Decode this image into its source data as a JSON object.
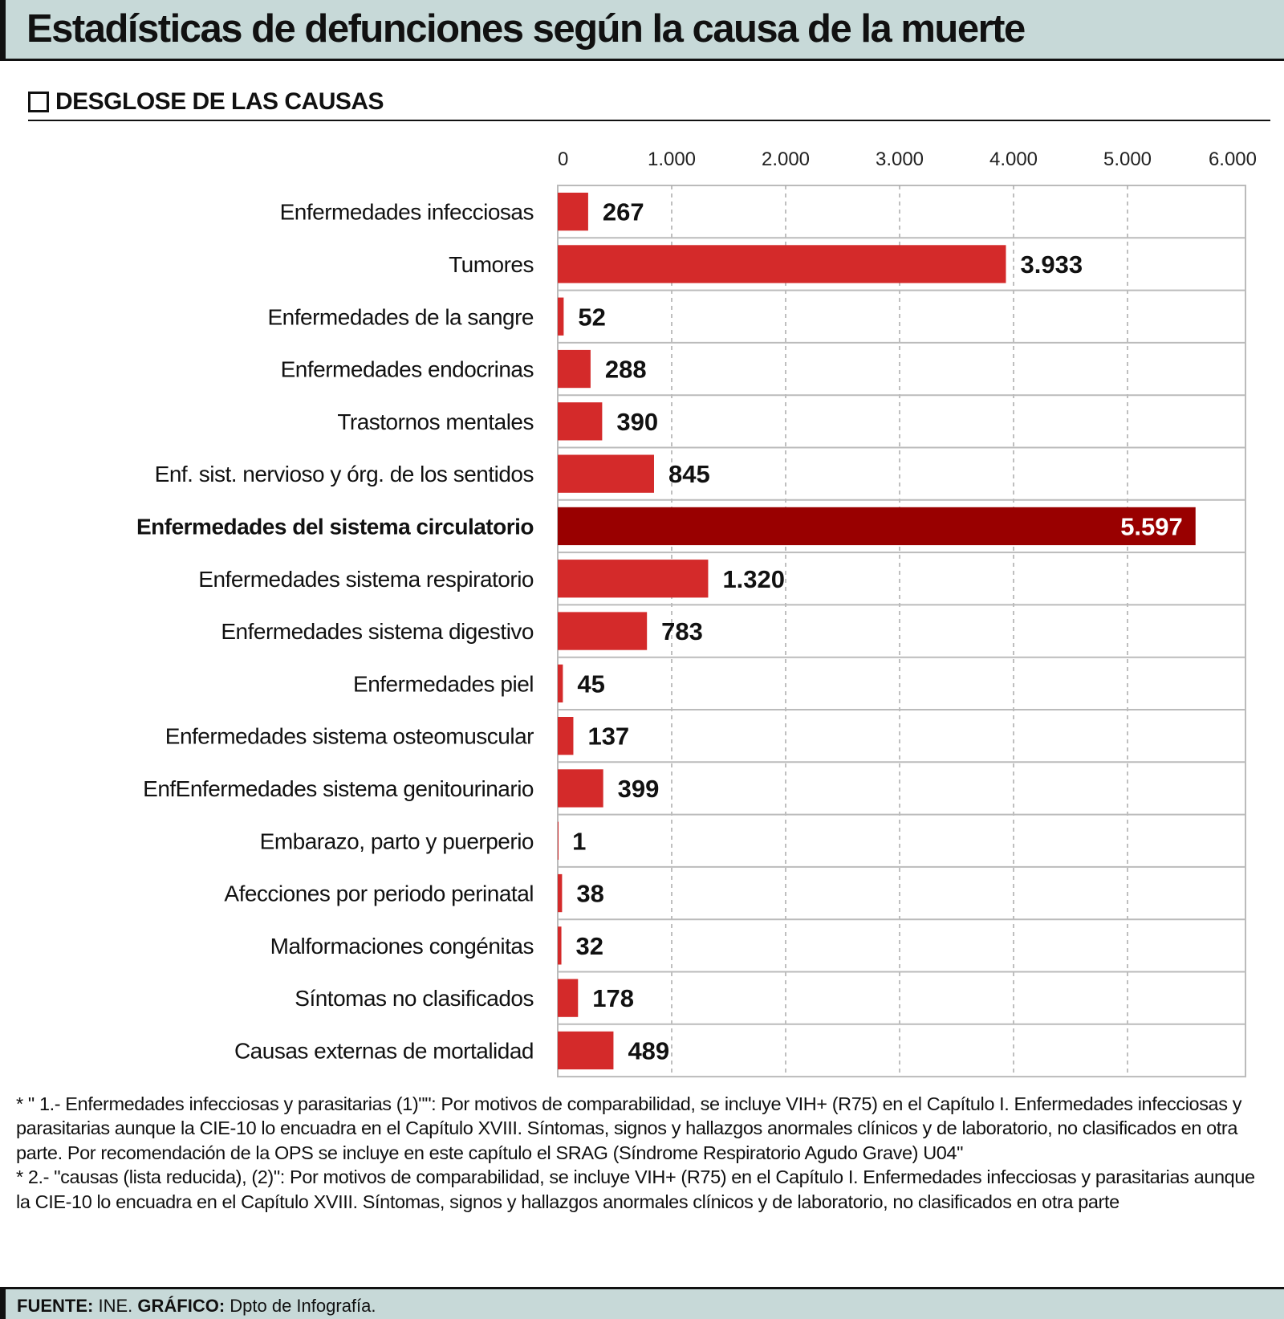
{
  "title": "Estadísticas de defunciones según la causa de la muerte",
  "subtitle": "DESGLOSE DE LAS CAUSAS",
  "chart_data": {
    "type": "bar",
    "orientation": "horizontal",
    "xlim": [
      0,
      6000
    ],
    "ticks": [
      0,
      1000,
      2000,
      3000,
      4000,
      5000,
      6000
    ],
    "tick_labels": [
      "0",
      "1.000",
      "2.000",
      "3.000",
      "4.000",
      "5.000",
      "6.000"
    ],
    "grid": true,
    "categories": [
      "Enfermedades infecciosas",
      "Tumores",
      "Enfermedades de la sangre",
      "Enfermedades endocrinas",
      "Trastornos mentales",
      "Enf. sist. nervioso y órg. de los sentidos",
      "Enfermedades del sistema circulatorio",
      "Enfermedades sistema respiratorio",
      "Enfermedades sistema digestivo",
      "Enfermedades piel",
      "Enfermedades sistema osteomuscular",
      "EnfEnfermedades sistema genitourinario",
      "Embarazo, parto y puerperio",
      "Afecciones por periodo perinatal",
      "Malformaciones congénitas",
      "Síntomas no clasificados",
      "Causas externas de mortalidad"
    ],
    "values": [
      267,
      3933,
      52,
      288,
      390,
      845,
      5597,
      1320,
      783,
      45,
      137,
      399,
      1,
      38,
      32,
      178,
      489
    ],
    "value_labels": [
      "267",
      "3.933",
      "52",
      "288",
      "390",
      "845",
      "5.597",
      "1.320",
      "783",
      "45",
      "137",
      "399",
      "1",
      "38",
      "32",
      "178",
      "489"
    ],
    "highlight_index": 6,
    "colors": {
      "bar": "#d42a2a",
      "highlight": "#990000",
      "grid": "#aaaaaa"
    }
  },
  "footnotes": [
    "* \" 1.- Enfermedades infecciosas y parasitarias (1)\"\": Por motivos de comparabilidad, se incluye VIH+ (R75) en el Capítulo I. Enfermedades infecciosas y parasitarias aunque la CIE-10 lo encuadra en el Capítulo XVIII. Síntomas, signos y hallazgos anormales clínicos y de laboratorio, no clasificados en otra parte. Por recomendación de la OPS se incluye en este capítulo el SRAG (Síndrome Respiratorio Agudo Grave) U04\"",
    "* 2.- \"causas (lista reducida), (2)\": Por motivos de comparabilidad, se incluye VIH+ (R75) en el Capítulo I. Enfermedades infecciosas y parasitarias aunque la CIE-10 lo encuadra en el Capítulo XVIII. Síntomas, signos y hallazgos anormales clínicos y de laboratorio, no clasificados en otra parte"
  ],
  "source": {
    "source_label": "FUENTE:",
    "source_value": "INE.",
    "graphic_label": "GRÁFICO:",
    "graphic_value": "Dpto de Infografía."
  }
}
